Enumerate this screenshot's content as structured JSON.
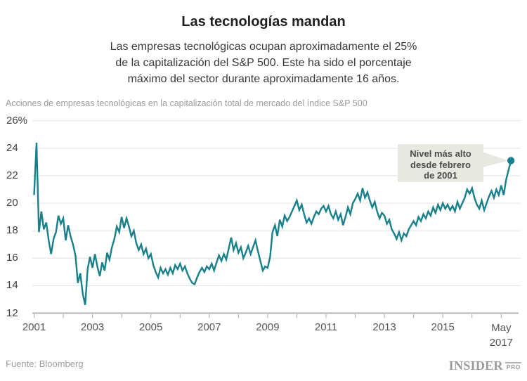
{
  "header": {
    "title": "Las tecnologías mandan",
    "subtitle_lines": [
      "Las empresas tecnológicas ocupan aproximadamente el 25%",
      "de la capitalización del S&P 500. Este ha sido el porcentaje",
      "máximo del sector durante aproximadamente 16 años."
    ]
  },
  "chart_data": {
    "type": "line",
    "title": "Acciones de empresas tecnológicas en la capitalización total de mercado del índice S&P 500",
    "unit": "%",
    "ylim": [
      12,
      26
    ],
    "grid": true,
    "line_color": "#17808b",
    "grid_color": "#e2e2e2",
    "axis_color": "#b3b3b3",
    "tick_color": "#a6a6a6",
    "y_ticks": [
      {
        "value": 26,
        "label": "26%"
      },
      {
        "value": 24,
        "label": "24"
      },
      {
        "value": 22,
        "label": "22"
      },
      {
        "value": 20,
        "label": "20"
      },
      {
        "value": 18,
        "label": "18"
      },
      {
        "value": 16,
        "label": "16"
      },
      {
        "value": 14,
        "label": "14"
      },
      {
        "value": 12,
        "label": "12"
      }
    ],
    "x_ticks_years": [
      2001,
      2002,
      2003,
      2004,
      2005,
      2006,
      2007,
      2008,
      2009,
      2010,
      2011,
      2012,
      2013,
      2014,
      2015,
      2016,
      2017
    ],
    "x_tick_labels": [
      {
        "year": 2001,
        "label": "2001"
      },
      {
        "year": 2003,
        "label": "2003"
      },
      {
        "year": 2005,
        "label": "2005"
      },
      {
        "year": 2007,
        "label": "2007"
      },
      {
        "year": 2009,
        "label": "2009"
      },
      {
        "year": 2011,
        "label": "2011"
      },
      {
        "year": 2013,
        "label": "2013"
      },
      {
        "year": 2015,
        "label": "2015"
      }
    ],
    "x_end_label": {
      "center_year": 2017.0,
      "lines": [
        "May",
        "2017"
      ]
    },
    "series": [
      {
        "name": "Acciones tecnológicas (% de la capitalización del S&P 500)",
        "start": "2001-01",
        "frequency": "monthly",
        "values": [
          20.6,
          24.4,
          17.9,
          19.4,
          18.1,
          18.6,
          17.3,
          16.3,
          17.4,
          17.9,
          19.1,
          18.5,
          18.9,
          17.3,
          18.4,
          17.6,
          17.0,
          16.2,
          14.2,
          14.9,
          13.4,
          12.6,
          15.2,
          16.1,
          15.3,
          16.3,
          15.4,
          14.7,
          15.7,
          15.1,
          16.4,
          15.9,
          16.8,
          17.4,
          18.3,
          17.9,
          19.0,
          18.2,
          18.9,
          18.3,
          17.6,
          18.0,
          17.1,
          16.6,
          17.0,
          16.3,
          16.7,
          16.0,
          16.3,
          15.5,
          15.0,
          14.6,
          15.3,
          14.9,
          15.2,
          14.8,
          15.3,
          14.9,
          15.5,
          15.2,
          15.6,
          15.1,
          15.4,
          14.9,
          14.5,
          14.2,
          14.1,
          14.6,
          15.0,
          15.3,
          15.0,
          15.4,
          15.2,
          15.6,
          15.1,
          15.7,
          16.2,
          15.8,
          16.3,
          15.9,
          16.7,
          17.5,
          16.6,
          17.1,
          16.4,
          16.8,
          16.0,
          16.4,
          16.9,
          16.3,
          16.8,
          17.3,
          16.5,
          15.8,
          15.1,
          15.4,
          15.3,
          16.1,
          17.9,
          18.4,
          17.6,
          18.8,
          18.3,
          19.1,
          18.7,
          19.0,
          19.4,
          19.8,
          20.2,
          19.5,
          19.9,
          19.2,
          18.6,
          18.9,
          18.5,
          19.0,
          19.4,
          19.2,
          19.6,
          19.8,
          19.4,
          19.8,
          19.2,
          18.9,
          19.4,
          18.8,
          19.2,
          18.4,
          19.0,
          19.7,
          19.2,
          20.0,
          20.3,
          20.7,
          20.2,
          21.1,
          20.4,
          20.8,
          20.2,
          19.7,
          20.1,
          19.4,
          18.9,
          19.3,
          19.1,
          18.5,
          18.8,
          18.1,
          17.8,
          17.4,
          17.9,
          17.3,
          17.8,
          17.6,
          18.1,
          18.4,
          18.7,
          18.4,
          19.0,
          18.7,
          19.2,
          18.9,
          19.4,
          19.1,
          19.7,
          19.3,
          19.9,
          19.5,
          20.0,
          19.6,
          19.9,
          19.5,
          19.8,
          19.4,
          20.1,
          19.6,
          20.0,
          20.4,
          21.0,
          20.7,
          21.1,
          20.4,
          19.9,
          19.6,
          20.2,
          19.5,
          20.0,
          20.5,
          20.9,
          20.4,
          21.0,
          20.6,
          21.3,
          20.6,
          21.7,
          22.4,
          23.1
        ]
      }
    ],
    "end_point": {
      "date": "2017-05",
      "value": 23.1
    }
  },
  "annotation": {
    "lines": [
      "Nivel más alto",
      "desde febrero",
      "de 2001"
    ],
    "bg_color": "#e8e8e3"
  },
  "footer": {
    "source": "Fuente: Bloomberg",
    "brand": "INSIDER",
    "brand_suffix": "PRO"
  }
}
